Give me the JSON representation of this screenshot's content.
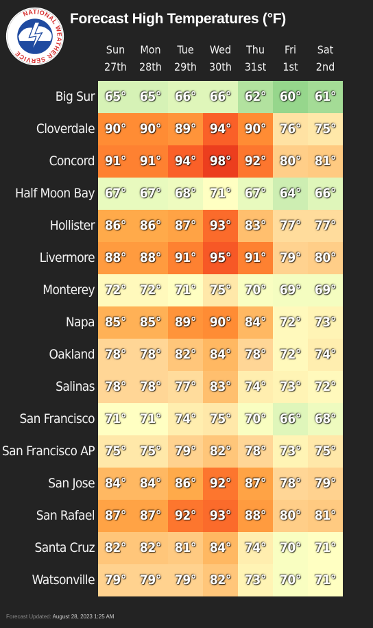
{
  "title": "Forecast High Temperatures (°F)",
  "logo": {
    "text": "NATIONAL WEATHER SERVICE",
    "icon": "nws-logo"
  },
  "footer": {
    "label": "Forecast Updated:",
    "value": "August 28, 2023 1:25 AM"
  },
  "colors": {
    "page_background": "#232323",
    "cool": "#b0dc9e",
    "warm": "#ffc070",
    "hot": "#ff8c3a",
    "hottest": "#f4431f"
  },
  "chart_data": {
    "type": "heatmap",
    "title": "Forecast High Temperatures (°F)",
    "columns": [
      {
        "day": "Sun",
        "date": "27th"
      },
      {
        "day": "Mon",
        "date": "28th"
      },
      {
        "day": "Tue",
        "date": "29th"
      },
      {
        "day": "Wed",
        "date": "30th"
      },
      {
        "day": "Thu",
        "date": "31st"
      },
      {
        "day": "Fri",
        "date": "1st"
      },
      {
        "day": "Sat",
        "date": "2nd"
      }
    ],
    "unit": "°",
    "rows": [
      {
        "city": "Big Sur",
        "values": [
          65,
          65,
          66,
          66,
          62,
          60,
          61
        ]
      },
      {
        "city": "Cloverdale",
        "values": [
          90,
          90,
          89,
          94,
          90,
          76,
          75
        ]
      },
      {
        "city": "Concord",
        "values": [
          91,
          91,
          94,
          98,
          92,
          80,
          81
        ]
      },
      {
        "city": "Half Moon Bay",
        "values": [
          67,
          67,
          68,
          71,
          67,
          64,
          66
        ]
      },
      {
        "city": "Hollister",
        "values": [
          86,
          86,
          87,
          93,
          83,
          77,
          77
        ]
      },
      {
        "city": "Livermore",
        "values": [
          88,
          88,
          91,
          95,
          91,
          79,
          80
        ]
      },
      {
        "city": "Monterey",
        "values": [
          72,
          72,
          71,
          75,
          70,
          69,
          69
        ]
      },
      {
        "city": "Napa",
        "values": [
          85,
          85,
          89,
          90,
          84,
          72,
          73
        ]
      },
      {
        "city": "Oakland",
        "values": [
          78,
          78,
          82,
          84,
          78,
          72,
          74
        ]
      },
      {
        "city": "Salinas",
        "values": [
          78,
          78,
          77,
          83,
          74,
          73,
          72
        ]
      },
      {
        "city": "San Francisco",
        "values": [
          71,
          71,
          74,
          75,
          70,
          66,
          68
        ]
      },
      {
        "city": "San Francisco AP",
        "values": [
          75,
          75,
          79,
          82,
          78,
          73,
          75
        ]
      },
      {
        "city": "San Jose",
        "values": [
          84,
          84,
          86,
          92,
          87,
          78,
          79
        ]
      },
      {
        "city": "San Rafael",
        "values": [
          87,
          87,
          92,
          93,
          88,
          80,
          81
        ]
      },
      {
        "city": "Santa Cruz",
        "values": [
          82,
          82,
          81,
          84,
          74,
          70,
          71
        ]
      },
      {
        "city": "Watsonville",
        "values": [
          79,
          79,
          79,
          82,
          73,
          70,
          71
        ]
      }
    ]
  }
}
